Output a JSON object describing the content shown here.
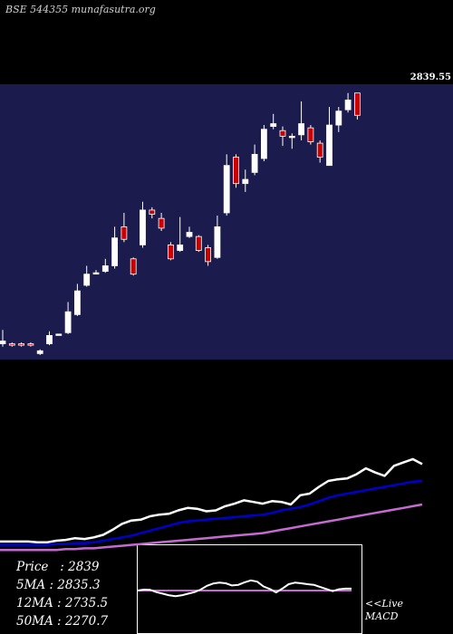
{
  "watermark": "BSE 544355 munafasutra.org",
  "price_tag": "2839.55",
  "stats": {
    "price": "Price   : 2839",
    "ma5": "5MA : 2835.3",
    "ma12": "12MA : 2735.5",
    "ma50": "50MA : 2270.7"
  },
  "macd_label": [
    "<<Live",
    "MACD"
  ],
  "colors": {
    "background": "#000000",
    "panel": "#1b1b4d",
    "up_candle": "#ffffff",
    "down_candle": "#cc0000",
    "ma5": "#ffffff",
    "ma12": "#0000cc",
    "ma50": "#c46ad0",
    "macd_signal": "#c46ad0"
  },
  "chart_data": {
    "type": "candlestick",
    "candles": [
      {
        "o": 1.0,
        "c": 1.2,
        "h": 2.0,
        "l": 0.8
      },
      {
        "o": 1.0,
        "c": 0.9,
        "h": 1.1,
        "l": 0.8
      },
      {
        "o": 1.0,
        "c": 0.9,
        "h": 1.1,
        "l": 0.8
      },
      {
        "o": 1.0,
        "c": 0.9,
        "h": 1.1,
        "l": 0.8
      },
      {
        "o": 0.3,
        "c": 0.5,
        "h": 0.6,
        "l": 0.2
      },
      {
        "o": 1.0,
        "c": 1.6,
        "h": 1.9,
        "l": 0.9
      },
      {
        "o": 1.6,
        "c": 1.7,
        "h": 1.7,
        "l": 1.6
      },
      {
        "o": 1.8,
        "c": 3.3,
        "h": 4.0,
        "l": 1.7
      },
      {
        "o": 3.1,
        "c": 4.8,
        "h": 5.3,
        "l": 3.0
      },
      {
        "o": 5.2,
        "c": 6.0,
        "h": 6.6,
        "l": 5.1
      },
      {
        "o": 6.1,
        "c": 6.1,
        "h": 6.3,
        "l": 6.0
      },
      {
        "o": 6.2,
        "c": 6.6,
        "h": 7.1,
        "l": 6.1
      },
      {
        "o": 6.6,
        "c": 8.6,
        "h": 9.4,
        "l": 6.4
      },
      {
        "o": 9.4,
        "c": 8.5,
        "h": 10.4,
        "l": 8.3
      },
      {
        "o": 7.1,
        "c": 6.0,
        "h": 7.2,
        "l": 5.9
      },
      {
        "o": 8.1,
        "c": 10.6,
        "h": 11.2,
        "l": 7.9
      },
      {
        "o": 10.6,
        "c": 10.3,
        "h": 10.8,
        "l": 10.0
      },
      {
        "o": 10.0,
        "c": 9.3,
        "h": 10.4,
        "l": 9.1
      },
      {
        "o": 8.1,
        "c": 7.1,
        "h": 8.3,
        "l": 7.0
      },
      {
        "o": 7.7,
        "c": 8.1,
        "h": 10.1,
        "l": 7.6
      },
      {
        "o": 8.7,
        "c": 9.0,
        "h": 9.4,
        "l": 8.6
      },
      {
        "o": 8.7,
        "c": 7.7,
        "h": 8.8,
        "l": 7.6
      },
      {
        "o": 7.9,
        "c": 6.9,
        "h": 8.1,
        "l": 6.6
      },
      {
        "o": 7.2,
        "c": 9.4,
        "h": 10.2,
        "l": 7.1
      },
      {
        "o": 10.4,
        "c": 13.8,
        "h": 14.6,
        "l": 10.2
      },
      {
        "o": 14.4,
        "c": 12.5,
        "h": 14.6,
        "l": 12.2
      },
      {
        "o": 12.5,
        "c": 12.8,
        "h": 13.5,
        "l": 11.9
      },
      {
        "o": 13.3,
        "c": 14.6,
        "h": 15.3,
        "l": 13.1
      },
      {
        "o": 14.3,
        "c": 16.4,
        "h": 16.7,
        "l": 14.1
      },
      {
        "o": 16.6,
        "c": 16.8,
        "h": 17.5,
        "l": 16.4
      },
      {
        "o": 16.3,
        "c": 15.9,
        "h": 16.6,
        "l": 15.2
      },
      {
        "o": 15.8,
        "c": 15.9,
        "h": 16.1,
        "l": 15.0
      },
      {
        "o": 16.0,
        "c": 16.8,
        "h": 18.4,
        "l": 15.6
      },
      {
        "o": 16.5,
        "c": 15.5,
        "h": 16.7,
        "l": 15.3
      },
      {
        "o": 15.4,
        "c": 14.4,
        "h": 15.6,
        "l": 14.0
      },
      {
        "o": 13.8,
        "c": 16.7,
        "h": 18.0,
        "l": 13.8
      },
      {
        "o": 16.7,
        "c": 17.7,
        "h": 18.0,
        "l": 16.2
      },
      {
        "o": 17.8,
        "c": 18.5,
        "h": 19.0,
        "l": 17.6
      },
      {
        "o": 19.0,
        "c": 17.4,
        "h": 19.0,
        "l": 17.1
      }
    ],
    "ma_lines": {
      "ma5": [
        5,
        5,
        5,
        5,
        4,
        4,
        6,
        7,
        9,
        8,
        10,
        13,
        19,
        26,
        30,
        31,
        35,
        37,
        38,
        42,
        45,
        44,
        41,
        42,
        47,
        50,
        54,
        52,
        50,
        53,
        52,
        49,
        60,
        62,
        70,
        77,
        79,
        80,
        85,
        92,
        87,
        83,
        95,
        99,
        103,
        97
      ],
      "ma12": [
        1,
        1,
        1,
        1,
        1,
        1,
        2,
        2,
        3,
        3,
        4,
        6,
        8,
        10,
        12,
        15,
        18,
        21,
        24,
        27,
        29,
        30,
        31,
        32,
        33,
        34,
        35,
        36,
        37,
        39,
        42,
        44,
        46,
        49,
        53,
        57,
        60,
        62,
        64,
        66,
        68,
        70,
        72,
        74,
        76,
        77
      ],
      "ma50": [
        -5,
        -5,
        -5,
        -5,
        -5,
        -5,
        -5,
        -4,
        -4,
        -3,
        -3,
        -2,
        -1,
        0,
        1,
        2,
        3,
        4,
        5,
        6,
        7,
        8,
        9,
        10,
        11,
        12,
        13,
        14,
        15,
        17,
        19,
        21,
        23,
        25,
        27,
        29,
        31,
        33,
        35,
        37,
        39,
        41,
        43,
        45,
        47,
        49
      ]
    },
    "macd": {
      "macd": [
        0,
        0.3,
        0.2,
        -0.5,
        -1,
        -1.5,
        -1.8,
        -1.5,
        -1,
        -0.5,
        0.3,
        1.5,
        2.2,
        2.5,
        2.3,
        1.6,
        1.8,
        2.6,
        3.2,
        2.8,
        1.3,
        0.5,
        -0.6,
        0.6,
        2.0,
        2.5,
        2.3,
        2.0,
        1.8,
        1.1,
        0.5,
        -0.2,
        0.4,
        0.6,
        0.6
      ],
      "signal": [
        0,
        0,
        0,
        0,
        0,
        0,
        0,
        0,
        0,
        0,
        0,
        0,
        0,
        0,
        0,
        0,
        0,
        0,
        0,
        0,
        0,
        0,
        0,
        0,
        0,
        0,
        0,
        0,
        0,
        0,
        0,
        0,
        0,
        0,
        0
      ]
    }
  }
}
